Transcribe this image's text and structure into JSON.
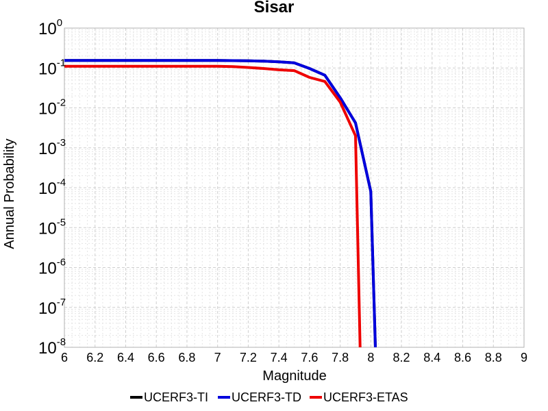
{
  "chart_data": {
    "type": "line",
    "title": "Sisar",
    "xlabel": "Magnitude",
    "ylabel": "Annual Probability",
    "xlim": [
      6,
      9
    ],
    "ylim": [
      1e-08,
      1
    ],
    "yscale": "log",
    "grid": true,
    "legend_position": "bottom",
    "x_ticks": [
      "6",
      "6.2",
      "6.4",
      "6.6",
      "6.8",
      "7",
      "7.2",
      "7.4",
      "7.6",
      "7.8",
      "8",
      "8.2",
      "8.4",
      "8.6",
      "8.8",
      "9"
    ],
    "y_ticks": [
      {
        "base": "10",
        "exp": "0"
      },
      {
        "base": "10",
        "exp": "-1"
      },
      {
        "base": "10",
        "exp": "-2"
      },
      {
        "base": "10",
        "exp": "-3"
      },
      {
        "base": "10",
        "exp": "-4"
      },
      {
        "base": "10",
        "exp": "-5"
      },
      {
        "base": "10",
        "exp": "-6"
      },
      {
        "base": "10",
        "exp": "-7"
      },
      {
        "base": "10",
        "exp": "-8"
      }
    ],
    "series": [
      {
        "name": "UCERF3-TI",
        "color": "#000000",
        "x": [
          6.0,
          6.5,
          7.0,
          7.1,
          7.2,
          7.3,
          7.4,
          7.5,
          7.6,
          7.7,
          7.8,
          7.9,
          8.0,
          8.03
        ],
        "y": [
          0.155,
          0.155,
          0.154,
          0.153,
          0.151,
          0.148,
          0.143,
          0.135,
          0.097,
          0.066,
          0.018,
          0.0042,
          8e-05,
          1e-08
        ]
      },
      {
        "name": "UCERF3-TD",
        "color": "#0000dd",
        "x": [
          6.0,
          6.5,
          7.0,
          7.1,
          7.2,
          7.3,
          7.4,
          7.5,
          7.6,
          7.7,
          7.8,
          7.9,
          8.0,
          8.03
        ],
        "y": [
          0.155,
          0.155,
          0.154,
          0.153,
          0.151,
          0.148,
          0.143,
          0.135,
          0.097,
          0.066,
          0.018,
          0.0042,
          8e-05,
          1e-08
        ]
      },
      {
        "name": "UCERF3-ETAS",
        "color": "#ee0000",
        "x": [
          6.0,
          6.5,
          7.0,
          7.1,
          7.2,
          7.3,
          7.4,
          7.5,
          7.6,
          7.7,
          7.8,
          7.9,
          7.93
        ],
        "y": [
          0.11,
          0.11,
          0.11,
          0.108,
          0.103,
          0.097,
          0.09,
          0.086,
          0.058,
          0.046,
          0.014,
          0.002,
          1e-08
        ]
      }
    ]
  }
}
